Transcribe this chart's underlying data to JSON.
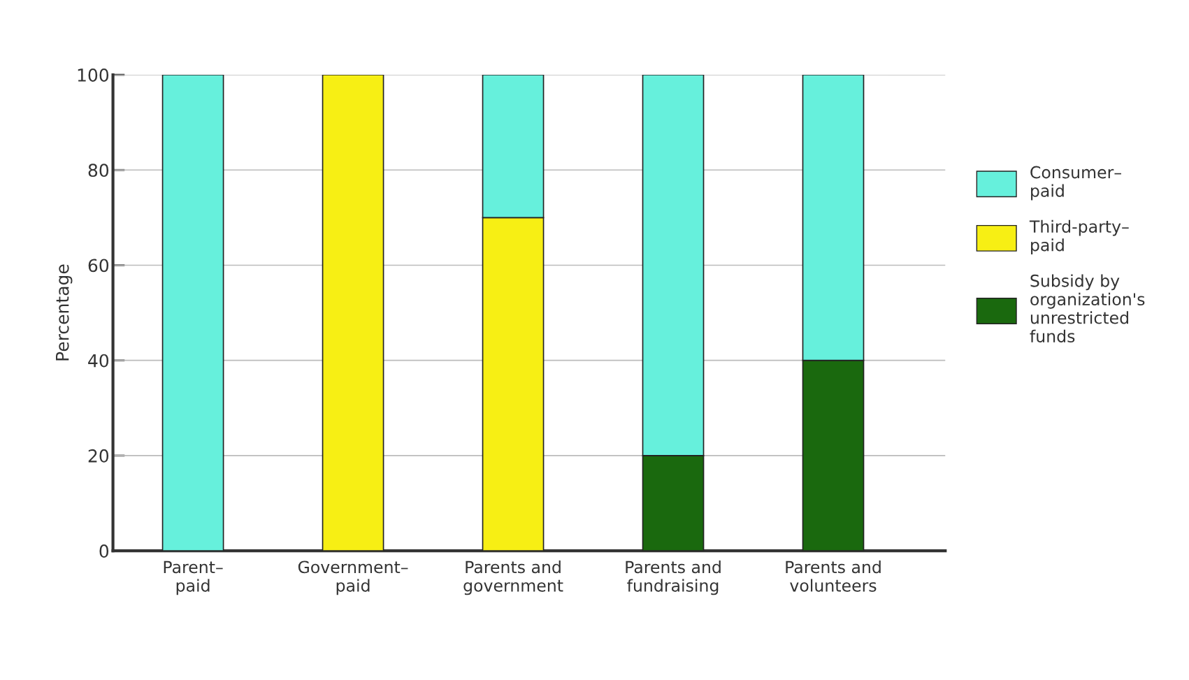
{
  "chart_data": {
    "type": "bar",
    "stacked": true,
    "ylabel": "Percentage",
    "categories": [
      "Parent–\npaid",
      "Government–\npaid",
      "Parents and\ngovernment",
      "Parents and\nfundraising",
      "Parents and\nvolunteers"
    ],
    "series": [
      {
        "name": "Subsidy by\norganization's\nunrestricted\nfunds",
        "color": "#1a690e",
        "values": [
          null,
          null,
          null,
          20,
          40
        ]
      },
      {
        "name": "Third-party–\npaid",
        "color": "#f7ef14",
        "values": [
          null,
          100,
          70,
          null,
          null
        ]
      },
      {
        "name": "Consumer–\npaid",
        "color": "#66f0dc",
        "values": [
          100,
          null,
          30,
          80,
          60
        ]
      }
    ],
    "ylim": [
      0,
      100
    ],
    "yticks": [
      0,
      20,
      40,
      60,
      80,
      100
    ],
    "grid": "y",
    "legend": "right"
  }
}
